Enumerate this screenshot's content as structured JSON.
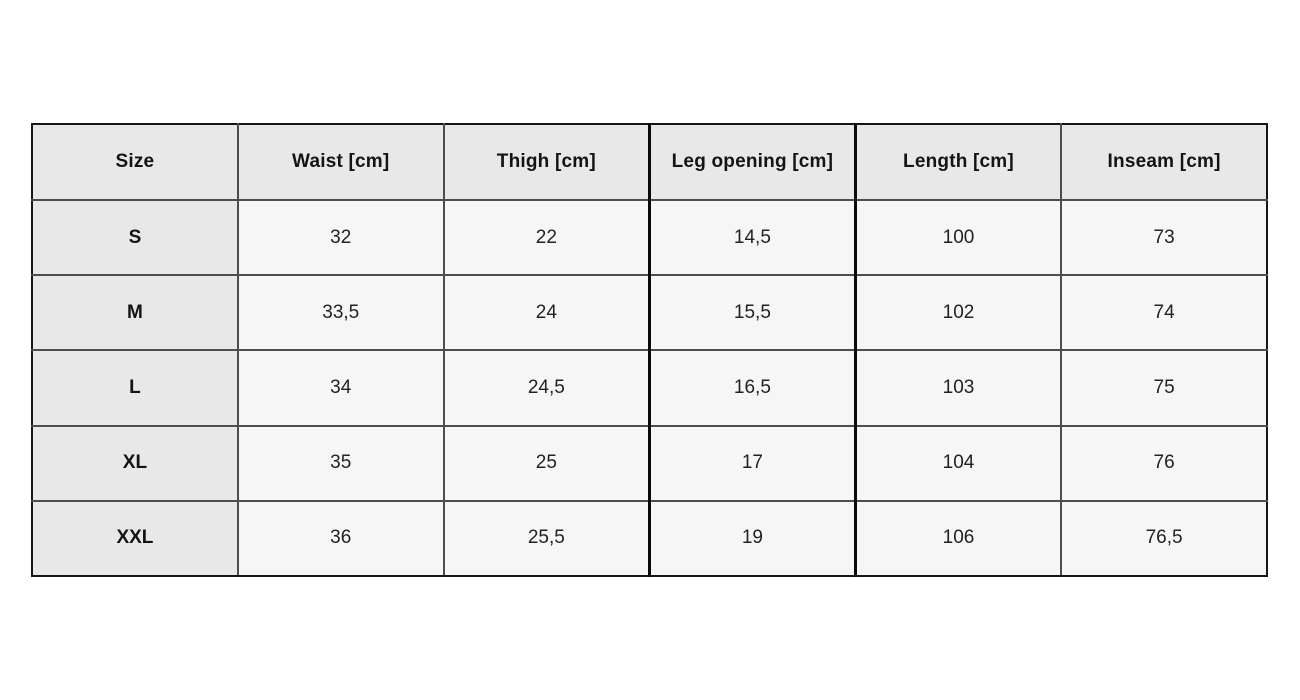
{
  "chart_data": {
    "type": "table",
    "title": "",
    "columns": [
      "Size",
      "Waist [cm]",
      "Thigh [cm]",
      "Leg opening [cm]",
      "Length [cm]",
      "Inseam [cm]"
    ],
    "rows": [
      {
        "size": "S",
        "values": [
          "32",
          "22",
          "14,5",
          "100",
          "73"
        ]
      },
      {
        "size": "M",
        "values": [
          "33,5",
          "24",
          "15,5",
          "102",
          "74"
        ]
      },
      {
        "size": "L",
        "values": [
          "34",
          "24,5",
          "16,5",
          "103",
          "75"
        ]
      },
      {
        "size": "XL",
        "values": [
          "35",
          "25",
          "17",
          "104",
          "76"
        ]
      },
      {
        "size": "XXL",
        "values": [
          "36",
          "25,5",
          "19",
          "106",
          "76,5"
        ]
      }
    ],
    "layout": {
      "grid": true,
      "header_background": "#e8e8e8",
      "row_label_background": "#e8e8e8",
      "cell_background": "#f6f6f6",
      "grid_color": "#4d4d4d",
      "outer_border_color": "#161616",
      "emphasized_column": "Leg opening [cm]",
      "emphasized_column_border_color": "#0a0a0a",
      "text_color": "#141414",
      "page_background": "#ffffff"
    }
  }
}
